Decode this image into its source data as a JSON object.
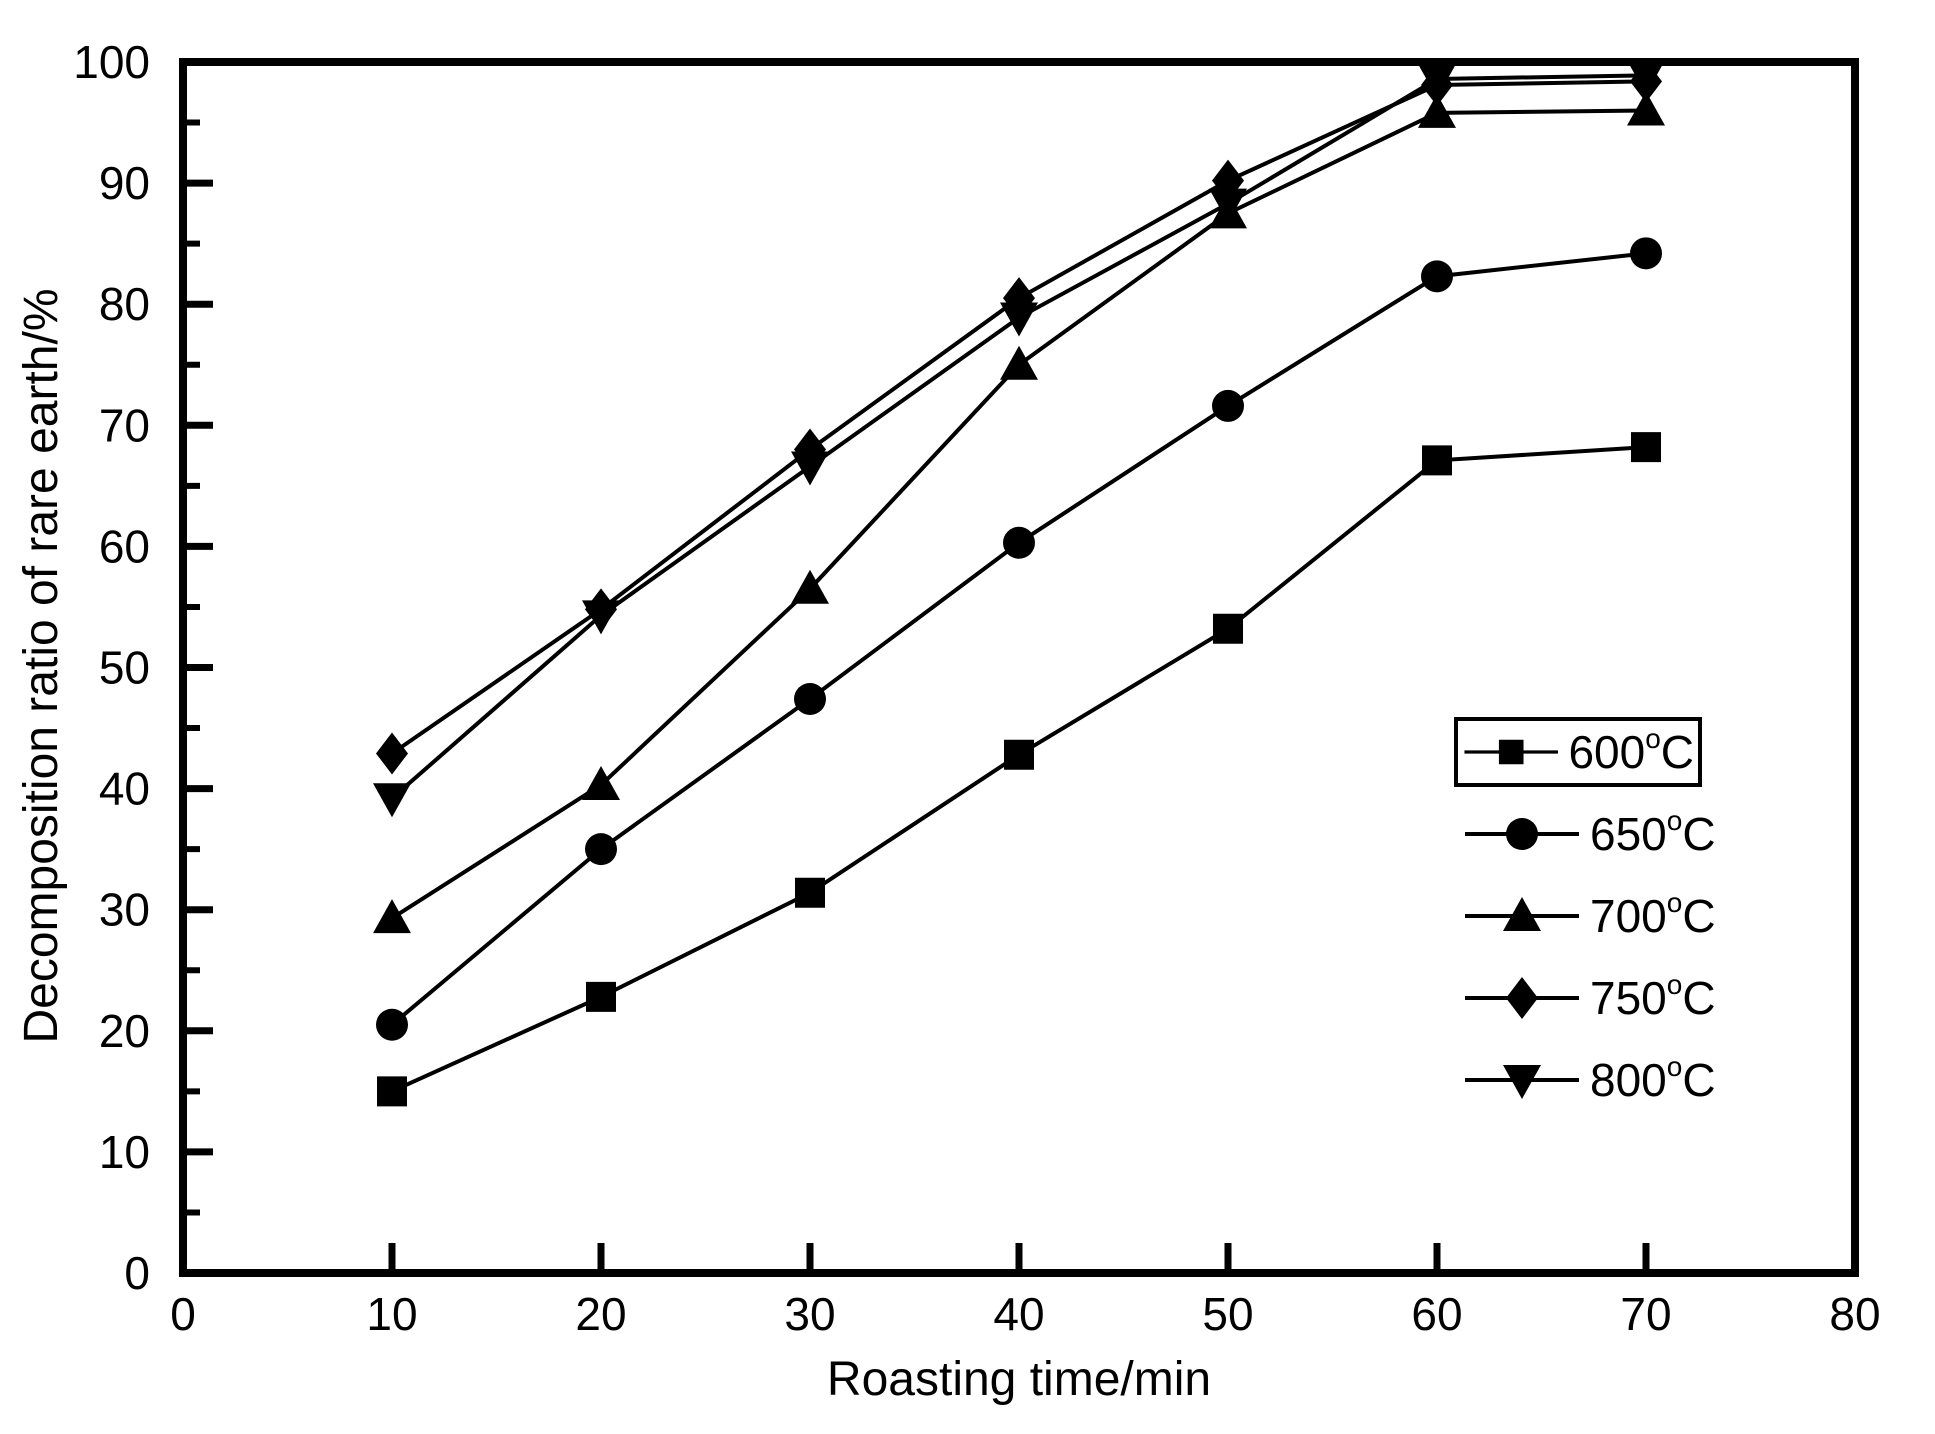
{
  "chart_data": {
    "type": "line",
    "title": "",
    "xlabel": "Roasting time/min",
    "ylabel": "Decomposition ratio of rare earth/%",
    "xlim": [
      0,
      80
    ],
    "ylim": [
      0,
      100
    ],
    "x_ticks": [
      0,
      10,
      20,
      30,
      40,
      50,
      60,
      70,
      80
    ],
    "y_ticks": [
      0,
      10,
      20,
      30,
      40,
      50,
      60,
      70,
      80,
      90,
      100
    ],
    "y_minor_step": 5,
    "grid": "off",
    "legend_position": "middle-right",
    "legend_first_entry_boxed": true,
    "colors": {
      "ink": "#000000",
      "background": "#ffffff"
    },
    "x": [
      10,
      20,
      30,
      40,
      50,
      60,
      70
    ],
    "series": [
      {
        "label": "600",
        "degree_mark": "o",
        "unit": "C",
        "marker": "square",
        "values": [
          15.0,
          22.8,
          31.4,
          42.8,
          53.2,
          67.1,
          68.2
        ]
      },
      {
        "label": "650",
        "degree_mark": "o",
        "unit": "C",
        "marker": "circle",
        "values": [
          20.5,
          35.0,
          47.4,
          60.3,
          71.6,
          82.3,
          84.2
        ]
      },
      {
        "label": "700",
        "degree_mark": "o",
        "unit": "C",
        "marker": "triangle-up",
        "values": [
          29.3,
          40.3,
          56.5,
          75.0,
          87.5,
          95.8,
          96.0
        ]
      },
      {
        "label": "750",
        "degree_mark": "o",
        "unit": "C",
        "marker": "diamond",
        "values": [
          42.9,
          54.8,
          68.0,
          80.5,
          90.2,
          98.1,
          98.4
        ]
      },
      {
        "label": "800",
        "degree_mark": "o",
        "unit": "C",
        "marker": "triangle-down",
        "values": [
          39.2,
          54.3,
          66.6,
          78.9,
          88.3,
          98.6,
          98.9
        ]
      }
    ]
  }
}
